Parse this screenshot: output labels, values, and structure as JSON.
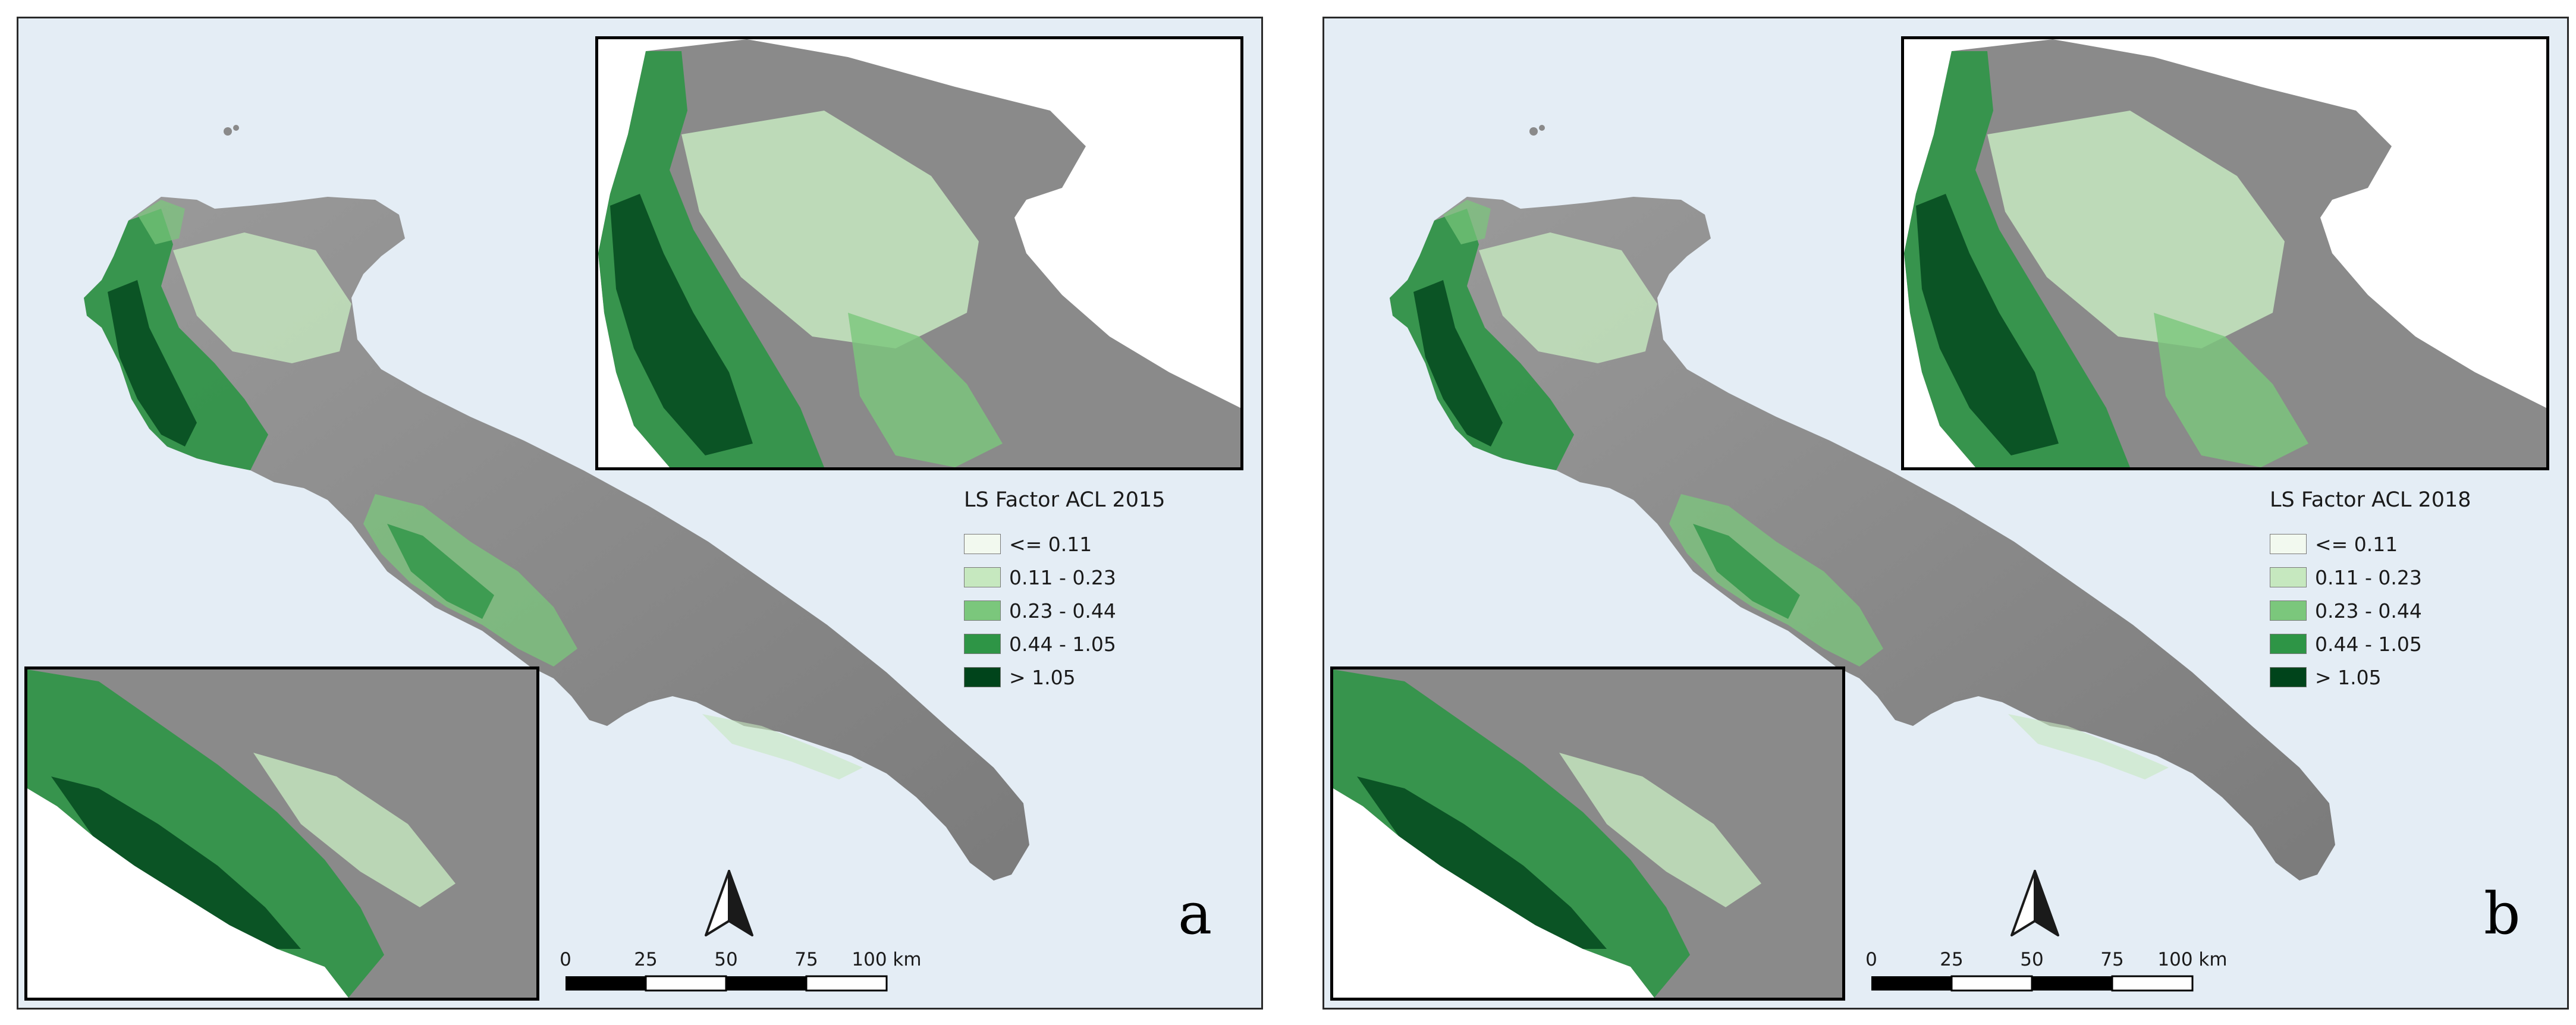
{
  "panels": [
    {
      "id": "a",
      "letter": "a",
      "legend": {
        "title": "LS Factor ACL 2015",
        "classes": [
          {
            "label": "<= 0.11",
            "color": "#f2f9ef"
          },
          {
            "label": "0.11 - 0.23",
            "color": "#c6e8bf"
          },
          {
            "label": "0.23 - 0.44",
            "color": "#7bc77c"
          },
          {
            "label": "0.44 - 1.05",
            "color": "#2e9546"
          },
          {
            "label": "> 1.05",
            "color": "#00441b"
          }
        ]
      },
      "scale": {
        "ticks": [
          "0",
          "25",
          "50",
          "75",
          "100 km"
        ]
      }
    },
    {
      "id": "b",
      "letter": "b",
      "legend": {
        "title": "LS Factor ACL 2018",
        "classes": [
          {
            "label": "<= 0.11",
            "color": "#f2f9ef"
          },
          {
            "label": "0.11 - 0.23",
            "color": "#c6e8bf"
          },
          {
            "label": "0.23 - 0.44",
            "color": "#7bc77c"
          },
          {
            "label": "0.44 - 1.05",
            "color": "#2e9546"
          },
          {
            "label": "> 1.05",
            "color": "#00441b"
          }
        ]
      },
      "scale": {
        "ticks": [
          "0",
          "25",
          "50",
          "75",
          "100 km"
        ]
      }
    }
  ],
  "colors": {
    "sea": "#e4edf5",
    "land": "#8a8a8a",
    "frame": "#2a2a2a"
  }
}
